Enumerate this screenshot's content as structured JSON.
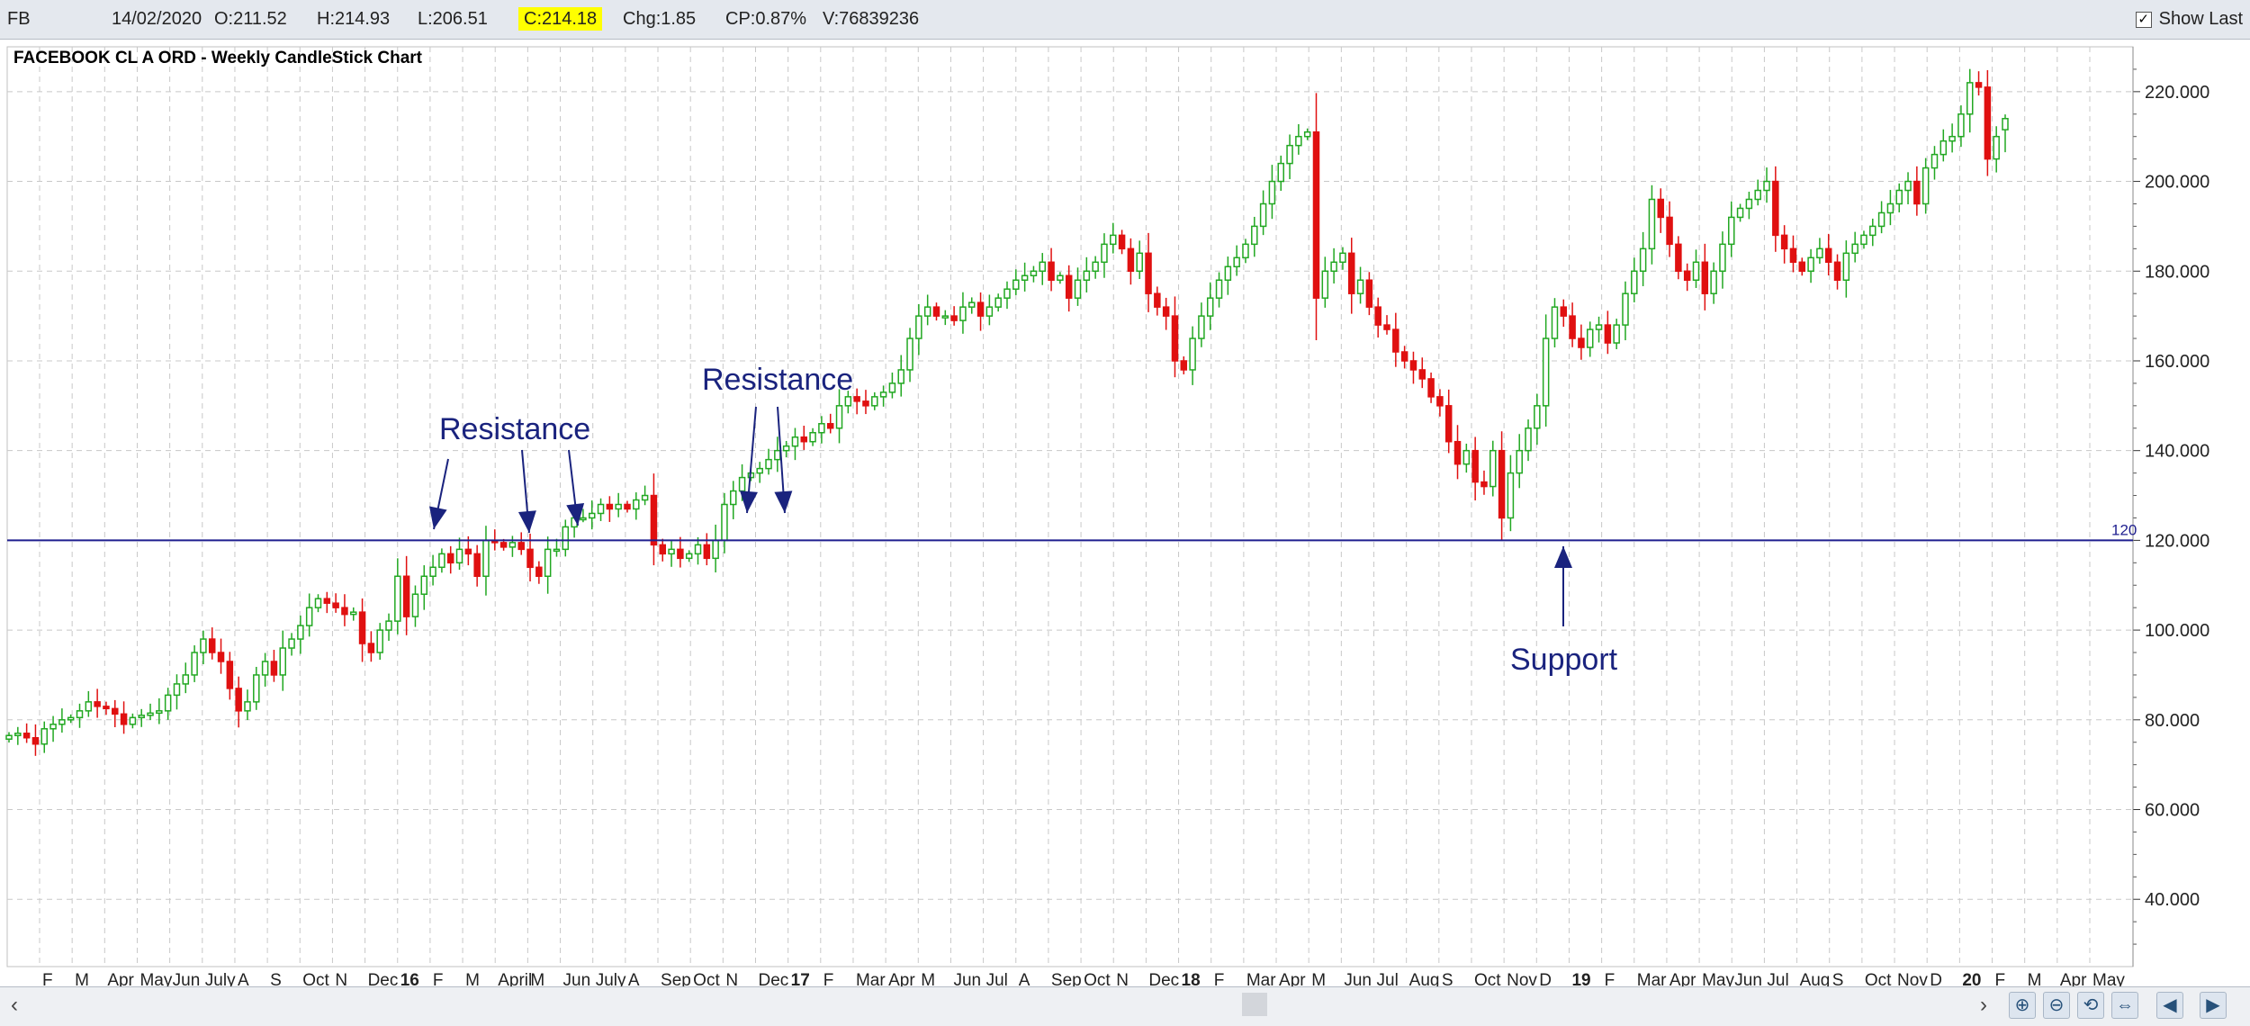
{
  "toolbar": {
    "symbol": "FB",
    "date": "14/02/2020",
    "open": "O:211.52",
    "high": "H:214.93",
    "low": "L:206.51",
    "close": "C:214.18",
    "change": "Chg:1.85",
    "change_pct": "CP:0.87%",
    "volume": "V:76839236",
    "show_last_label": "Show Last",
    "show_last_checked": true
  },
  "chart_title": "FACEBOOK CL A ORD - Weekly CandleStick Chart",
  "chart_data": {
    "type": "candlestick",
    "title": "FACEBOOK CL A ORD - Weekly CandleStick Chart",
    "x_axis_ticks": [
      "F",
      "M",
      "Apr",
      "May",
      "Jun",
      "July",
      "A",
      "S",
      "Oct",
      "N",
      "Dec",
      "16",
      "F",
      "M",
      "April",
      "M",
      "Jun",
      "July",
      "A",
      "Sep",
      "Oct",
      "N",
      "Dec",
      "17",
      "F",
      "Mar",
      "Apr",
      "M",
      "Jun",
      "Jul",
      "A",
      "Sep",
      "Oct",
      "N",
      "Dec",
      "18",
      "F",
      "Mar",
      "Apr",
      "M",
      "Jun",
      "Jul",
      "Aug",
      "S",
      "Oct",
      "Nov",
      "D",
      "19",
      "F",
      "Mar",
      "Apr",
      "May",
      "Jun",
      "Jul",
      "Aug",
      "S",
      "Oct",
      "Nov",
      "D",
      "20",
      "F",
      "M",
      "Apr",
      "May"
    ],
    "bold_ticks": [
      "16",
      "17",
      "18",
      "19",
      "20"
    ],
    "y_axis_ticks": [
      40,
      60,
      80,
      100,
      120,
      140,
      160,
      180,
      200,
      220
    ],
    "y_tick_labels": [
      "40.000",
      "60.000",
      "80.000",
      "100.000",
      "120.000",
      "140.000",
      "160.000",
      "180.000",
      "200.000",
      "220.000"
    ],
    "ylim": [
      25,
      230
    ],
    "horizontal_line": {
      "value": 120,
      "label": "120",
      "color": "#1f1f8f"
    },
    "colors": {
      "up": "#22a822",
      "down": "#e01010",
      "annotation": "#1a237e",
      "grid": "#c8c8c8"
    },
    "close_series": [
      76.5,
      77,
      76,
      74.6,
      78,
      79,
      80,
      80.5,
      82,
      84,
      83,
      82.5,
      81.3,
      79,
      80.5,
      81,
      81.5,
      82,
      85.5,
      88,
      90,
      95,
      98,
      95,
      93,
      87,
      82,
      84,
      90,
      93,
      90,
      96,
      98,
      101,
      105,
      107,
      106,
      105,
      103.5,
      104,
      97,
      95,
      100,
      102,
      112,
      103,
      108,
      112,
      114,
      117,
      115,
      118,
      117,
      112,
      120,
      119.5,
      118.5,
      119.5,
      118,
      114,
      112,
      118,
      118,
      123,
      125,
      125,
      126,
      128,
      127,
      128,
      127,
      129,
      130,
      119,
      117,
      118,
      116,
      117,
      119,
      116,
      120,
      128,
      131,
      134,
      135,
      136,
      138,
      140,
      141,
      143,
      142,
      144,
      146,
      145,
      150,
      152,
      151,
      150,
      152,
      153,
      155,
      158,
      165,
      170,
      172,
      170,
      170,
      169,
      172,
      173,
      170,
      172,
      174,
      176,
      178,
      179,
      180,
      182,
      178,
      179,
      174,
      178,
      180,
      182,
      186,
      188,
      185,
      180,
      184,
      175,
      172,
      170,
      160,
      158,
      165,
      170,
      174,
      178,
      181,
      183,
      186,
      190,
      195,
      200,
      204,
      208,
      210,
      211,
      174,
      180,
      182,
      184,
      175,
      178,
      172,
      168,
      167,
      162,
      160,
      158,
      156,
      152,
      150,
      142,
      137,
      140,
      133,
      132,
      140,
      125,
      135,
      140,
      145,
      150,
      165,
      172,
      170,
      165,
      163,
      167,
      168,
      164,
      168,
      175,
      180,
      185,
      196,
      192,
      186,
      180,
      178,
      182,
      175,
      180,
      186,
      192,
      194,
      196,
      198,
      200,
      188,
      185,
      182,
      180,
      183,
      185,
      182,
      178,
      184,
      186,
      188,
      190,
      193,
      195,
      198,
      200,
      195,
      203,
      206,
      209,
      210,
      215,
      222,
      221,
      205,
      210,
      214
    ],
    "series_start": "2015-02",
    "series_end": "2020-02-14",
    "last_bar": {
      "date": "14/02/2020",
      "open": 211.52,
      "high": 214.93,
      "low": 206.51,
      "close": 214.18
    },
    "annotations": [
      {
        "text": "Resistance",
        "arrows_to": [
          "2016-01",
          "2016-05",
          "2016-06"
        ]
      },
      {
        "text": "Resistance",
        "arrows_to": [
          "2016-11",
          "2016-12"
        ]
      },
      {
        "text": "Support",
        "arrows_to": [
          "2018-12"
        ]
      }
    ]
  },
  "bottom_bar": {
    "scroll_left": "‹",
    "scroll_right": "›",
    "nav_buttons": [
      "zoom-in",
      "zoom-out",
      "reset",
      "fit",
      "prev",
      "next"
    ]
  }
}
